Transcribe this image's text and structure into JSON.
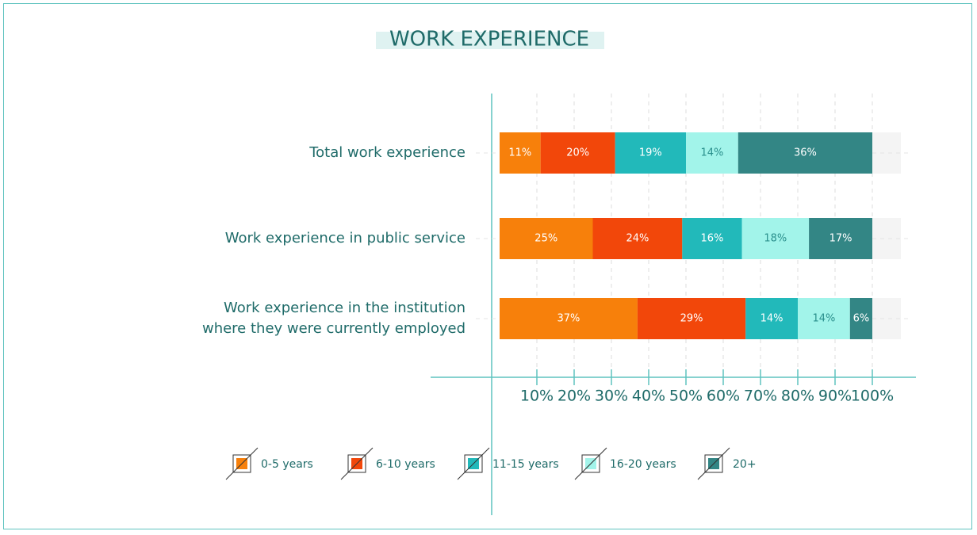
{
  "chart_data": {
    "type": "stacked-bar-horizontal",
    "title": "WORK EXPERIENCE",
    "categories": [
      "Total work experience",
      "Work experience in public service",
      "Work experience in the institution\nwhere they were currently employed"
    ],
    "series": [
      {
        "name": "0-5 years",
        "color": "#f7800b",
        "values": [
          11,
          25,
          37
        ],
        "value_labels": [
          "11%",
          "25%",
          "37%"
        ]
      },
      {
        "name": "6-10 years",
        "color": "#f2470a",
        "values": [
          20,
          24,
          29
        ],
        "value_labels": [
          "20%",
          "24%",
          "29%"
        ]
      },
      {
        "name": "11-15 years",
        "color": "#22b9ba",
        "values": [
          19,
          16,
          14
        ],
        "value_labels": [
          "19%",
          "16%",
          "14%"
        ]
      },
      {
        "name": "16-20 years",
        "color": "#a2f4ea",
        "values": [
          14,
          18,
          14
        ],
        "value_labels": [
          "14%",
          "18%",
          "14%"
        ]
      },
      {
        "name": "20+",
        "color": "#338685",
        "values": [
          36,
          17,
          6
        ],
        "value_labels": [
          "36%",
          "17%",
          "6%"
        ]
      }
    ],
    "xlim": [
      0,
      100
    ],
    "xticks": [
      {
        "value": 10,
        "label": "10%"
      },
      {
        "value": 20,
        "label": "20%"
      },
      {
        "value": 30,
        "label": "30%"
      },
      {
        "value": 40,
        "label": "40%"
      },
      {
        "value": 50,
        "label": "50%"
      },
      {
        "value": 60,
        "label": "60%"
      },
      {
        "value": 70,
        "label": "70%"
      },
      {
        "value": 80,
        "label": "80%"
      },
      {
        "value": 90,
        "label": "90%"
      },
      {
        "value": 100,
        "label": "100%"
      }
    ],
    "grid": true,
    "legend": "bottom"
  }
}
